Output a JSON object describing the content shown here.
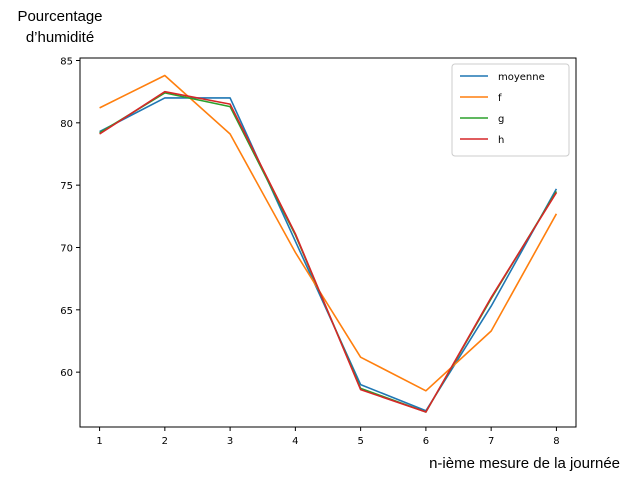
{
  "chart_data": {
    "type": "line",
    "x": [
      1,
      2,
      3,
      4,
      5,
      6,
      7,
      8
    ],
    "ylabel": "Pourcentage\nd’humidité",
    "xlabel": "n-ième mesure de la journée",
    "xlim": [
      0.7,
      8.3
    ],
    "ylim": [
      55.6,
      85.2
    ],
    "xticks": [
      1,
      2,
      3,
      4,
      5,
      6,
      7,
      8
    ],
    "yticks": [
      60,
      65,
      70,
      75,
      80,
      85
    ],
    "grid": false,
    "legend_position": "top-right",
    "series": [
      {
        "name": "moyenne",
        "color": "#1f77b4",
        "values": [
          79.3,
          82.0,
          82.0,
          70.5,
          59.0,
          56.9,
          65.3,
          74.7
        ]
      },
      {
        "name": "f",
        "color": "#ff7f0e",
        "values": [
          81.2,
          83.8,
          79.1,
          69.6,
          61.2,
          58.5,
          63.3,
          72.7
        ]
      },
      {
        "name": "g",
        "color": "#2ca02c",
        "values": [
          79.2,
          82.4,
          81.3,
          71.0,
          58.7,
          56.8,
          65.9,
          74.5
        ]
      },
      {
        "name": "h",
        "color": "#d62728",
        "values": [
          79.1,
          82.5,
          81.5,
          71.1,
          58.6,
          56.8,
          66.0,
          74.4
        ]
      }
    ]
  }
}
